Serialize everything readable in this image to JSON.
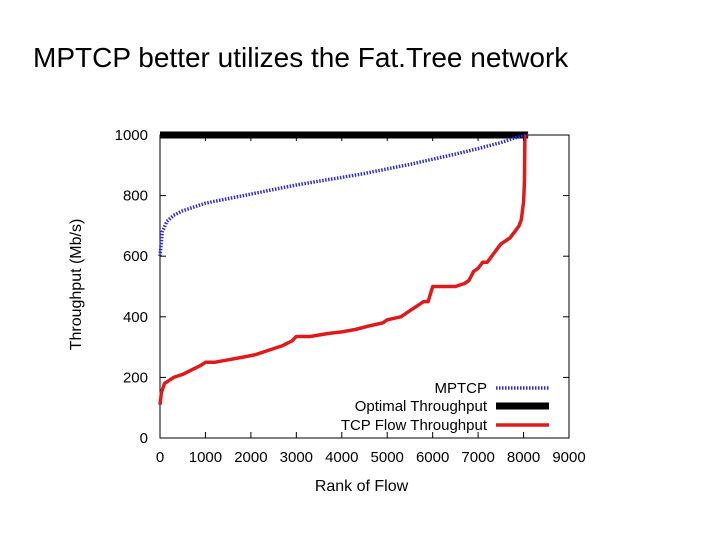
{
  "slide": {
    "title": "MPTCP better utilizes the Fat.Tree network"
  },
  "chart_data": {
    "type": "line",
    "xlabel": "Rank of Flow",
    "ylabel": "Throughput (Mb/s)",
    "xlim": [
      0,
      9000
    ],
    "ylim": [
      0,
      1000
    ],
    "xticks": [
      0,
      1000,
      2000,
      3000,
      4000,
      5000,
      6000,
      7000,
      8000,
      9000
    ],
    "yticks": [
      0,
      200,
      400,
      600,
      800,
      1000
    ],
    "grid": false,
    "legend_position": "bottom-right",
    "series": [
      {
        "name": "MPTCP",
        "color": "#2b2bd6",
        "style": "dotted",
        "x": [
          0,
          50,
          150,
          300,
          500,
          800,
          1000,
          1500,
          2000,
          2500,
          3000,
          3500,
          4000,
          4500,
          5000,
          5500,
          6000,
          6500,
          7000,
          7500,
          7800,
          8000,
          8100
        ],
        "y": [
          600,
          680,
          715,
          735,
          750,
          765,
          775,
          790,
          805,
          820,
          835,
          848,
          860,
          873,
          888,
          903,
          920,
          937,
          955,
          975,
          990,
          998,
          1000
        ]
      },
      {
        "name": "Optimal Throughput",
        "color": "#000000",
        "style": "solid-thick",
        "x": [
          0,
          8100
        ],
        "y": [
          1000,
          1000
        ]
      },
      {
        "name": "TCP Flow Throughput",
        "color": "#e01a1a",
        "style": "solid",
        "x": [
          0,
          30,
          100,
          200,
          300,
          500,
          700,
          900,
          1000,
          1200,
          1500,
          1800,
          2100,
          2400,
          2700,
          2900,
          3000,
          3300,
          3500,
          3700,
          4000,
          4300,
          4600,
          4900,
          5000,
          5300,
          5500,
          5700,
          5800,
          5900,
          6000,
          6300,
          6500,
          6700,
          6800,
          6900,
          7000,
          7100,
          7200,
          7300,
          7400,
          7500,
          7600,
          7700,
          7800,
          7900,
          7950,
          8000,
          8020,
          8030
        ],
        "y": [
          110,
          150,
          180,
          190,
          200,
          210,
          225,
          240,
          250,
          250,
          258,
          266,
          275,
          290,
          305,
          320,
          335,
          335,
          340,
          345,
          350,
          358,
          370,
          380,
          390,
          400,
          420,
          440,
          450,
          450,
          500,
          500,
          500,
          510,
          520,
          550,
          560,
          580,
          580,
          600,
          620,
          640,
          650,
          660,
          680,
          700,
          720,
          780,
          850,
          1000
        ]
      }
    ]
  }
}
